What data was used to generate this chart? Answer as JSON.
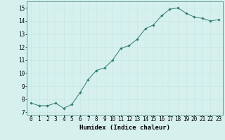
{
  "x": [
    0,
    1,
    2,
    3,
    4,
    5,
    6,
    7,
    8,
    9,
    10,
    11,
    12,
    13,
    14,
    15,
    16,
    17,
    18,
    19,
    20,
    21,
    22,
    23
  ],
  "y": [
    7.7,
    7.5,
    7.5,
    7.7,
    7.3,
    7.6,
    8.5,
    9.5,
    10.2,
    10.4,
    11.0,
    11.9,
    12.1,
    12.6,
    13.4,
    13.7,
    14.4,
    14.9,
    15.0,
    14.6,
    14.3,
    14.2,
    14.0,
    14.1
  ],
  "line_color": "#2e7d6e",
  "marker": "D",
  "marker_size": 1.8,
  "bg_color": "#d6f0ee",
  "grid_color": "#c8e8e4",
  "xlabel": "Humidex (Indice chaleur)",
  "xlabel_fontsize": 6.5,
  "xlabel_weight": "bold",
  "ylabel_ticks": [
    7,
    8,
    9,
    10,
    11,
    12,
    13,
    14,
    15
  ],
  "xtick_labels": [
    "0",
    "1",
    "2",
    "3",
    "4",
    "5",
    "6",
    "7",
    "8",
    "9",
    "10",
    "11",
    "12",
    "13",
    "14",
    "15",
    "16",
    "17",
    "18",
    "19",
    "20",
    "21",
    "22",
    "23"
  ],
  "ylim": [
    6.8,
    15.5
  ],
  "xlim": [
    -0.5,
    23.5
  ],
  "tick_fontsize": 5.5
}
